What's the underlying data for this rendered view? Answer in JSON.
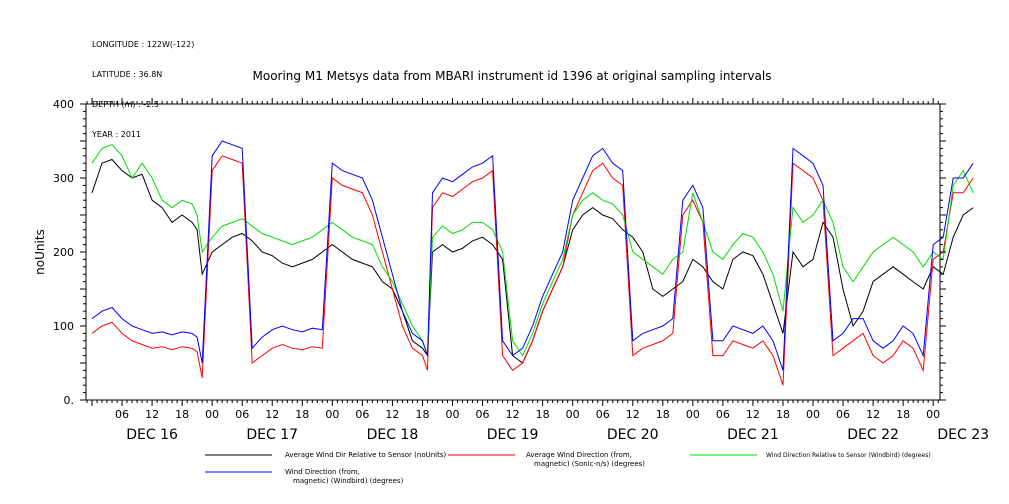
{
  "header": {
    "longitude": "LONGITUDE : 122W(-122)",
    "latitude": "LATITUDE : 36.8N",
    "depth": "DEPTH (m) : -2.5",
    "year": "YEAR : 2011"
  },
  "chart_data": {
    "type": "line",
    "title": "Mooring M1 Metsys data from MBARI instrument id 1396 at original sampling intervals",
    "ylabel": "noUnits",
    "xlabel": "",
    "ylim": [
      0,
      400
    ],
    "xlim": [
      0,
      180
    ],
    "yticks": [
      0,
      100,
      200,
      300,
      400
    ],
    "ytick_labels": [
      "0.",
      "100",
      "200",
      "300",
      "400"
    ],
    "x_units": "hours since DEC 16 00:00",
    "hour_ticks": [
      {
        "x": 6,
        "label": "06"
      },
      {
        "x": 12,
        "label": "12"
      },
      {
        "x": 18,
        "label": "18"
      },
      {
        "x": 24,
        "label": "00"
      },
      {
        "x": 30,
        "label": "06"
      },
      {
        "x": 36,
        "label": "12"
      },
      {
        "x": 42,
        "label": "18"
      },
      {
        "x": 48,
        "label": "00"
      },
      {
        "x": 54,
        "label": "06"
      },
      {
        "x": 60,
        "label": "12"
      },
      {
        "x": 66,
        "label": "18"
      },
      {
        "x": 72,
        "label": "00"
      },
      {
        "x": 78,
        "label": "06"
      },
      {
        "x": 84,
        "label": "12"
      },
      {
        "x": 90,
        "label": "18"
      },
      {
        "x": 96,
        "label": "00"
      },
      {
        "x": 102,
        "label": "06"
      },
      {
        "x": 108,
        "label": "12"
      },
      {
        "x": 114,
        "label": "18"
      },
      {
        "x": 120,
        "label": "00"
      },
      {
        "x": 126,
        "label": "06"
      },
      {
        "x": 132,
        "label": "12"
      },
      {
        "x": 138,
        "label": "18"
      },
      {
        "x": 144,
        "label": "00"
      },
      {
        "x": 150,
        "label": "06"
      },
      {
        "x": 156,
        "label": "12"
      },
      {
        "x": 162,
        "label": "18"
      },
      {
        "x": 168,
        "label": "00"
      }
    ],
    "day_labels": [
      {
        "x": 12,
        "label": "DEC 16"
      },
      {
        "x": 36,
        "label": "DEC 17"
      },
      {
        "x": 60,
        "label": "DEC 18"
      },
      {
        "x": 84,
        "label": "DEC 19"
      },
      {
        "x": 108,
        "label": "DEC 20"
      },
      {
        "x": 132,
        "label": "DEC 21"
      },
      {
        "x": 156,
        "label": "DEC 22"
      },
      {
        "x": 174,
        "label": "DEC 23"
      }
    ],
    "series": [
      {
        "name": "Average Wind Dir Relative to Sensor (noUnits)",
        "color": "#000000",
        "x": [
          0,
          2,
          4,
          6,
          8,
          10,
          12,
          14,
          16,
          18,
          20,
          21,
          22,
          24,
          26,
          28,
          30,
          32,
          34,
          36,
          38,
          40,
          42,
          44,
          46,
          48,
          50,
          52,
          54,
          56,
          58,
          60,
          62,
          64,
          66,
          67,
          68,
          70,
          72,
          74,
          76,
          78,
          80,
          82,
          84,
          86,
          88,
          90,
          92,
          94,
          96,
          98,
          100,
          102,
          104,
          106,
          108,
          110,
          112,
          114,
          116,
          118,
          120,
          122,
          124,
          126,
          128,
          130,
          132,
          134,
          136,
          138,
          140,
          142,
          144,
          146,
          148,
          150,
          152,
          154,
          156,
          158,
          160,
          162,
          164,
          166,
          168,
          170,
          172,
          174,
          176
        ],
        "values": [
          280,
          320,
          325,
          310,
          300,
          305,
          270,
          260,
          240,
          250,
          240,
          230,
          170,
          200,
          210,
          220,
          225,
          215,
          200,
          195,
          185,
          180,
          185,
          190,
          200,
          210,
          200,
          190,
          185,
          180,
          160,
          150,
          120,
          80,
          70,
          60,
          200,
          210,
          200,
          205,
          215,
          220,
          210,
          190,
          60,
          50,
          80,
          120,
          150,
          180,
          230,
          250,
          260,
          250,
          245,
          230,
          220,
          200,
          150,
          140,
          150,
          160,
          190,
          180,
          160,
          150,
          190,
          200,
          195,
          170,
          130,
          90,
          200,
          180,
          190,
          240,
          220,
          150,
          100,
          120,
          160,
          170,
          180,
          170,
          160,
          150,
          180,
          170,
          220,
          250,
          260
        ]
      },
      {
        "name": "Average Wind Direction (from, magnetic) (Sonic-n/s) (degrees)",
        "color": "#ff0000",
        "x": [
          0,
          2,
          4,
          6,
          8,
          10,
          12,
          14,
          16,
          18,
          20,
          21,
          22,
          24,
          26,
          28,
          30,
          32,
          34,
          36,
          38,
          40,
          42,
          44,
          46,
          48,
          50,
          52,
          54,
          56,
          58,
          60,
          62,
          64,
          66,
          67,
          68,
          70,
          72,
          74,
          76,
          78,
          80,
          82,
          84,
          86,
          88,
          90,
          92,
          94,
          96,
          98,
          100,
          102,
          104,
          106,
          108,
          110,
          112,
          114,
          116,
          118,
          120,
          122,
          124,
          126,
          128,
          130,
          132,
          134,
          136,
          138,
          140,
          142,
          144,
          146,
          148,
          150,
          152,
          154,
          156,
          158,
          160,
          162,
          164,
          166,
          168,
          170,
          172,
          174,
          176
        ],
        "values": [
          90,
          100,
          105,
          90,
          80,
          75,
          70,
          72,
          68,
          72,
          70,
          65,
          30,
          310,
          330,
          325,
          320,
          50,
          60,
          70,
          75,
          70,
          68,
          72,
          70,
          300,
          290,
          285,
          280,
          250,
          200,
          150,
          100,
          70,
          60,
          40,
          260,
          280,
          275,
          285,
          295,
          300,
          310,
          60,
          40,
          50,
          80,
          120,
          150,
          180,
          250,
          280,
          310,
          320,
          300,
          290,
          60,
          70,
          75,
          80,
          90,
          250,
          270,
          240,
          60,
          60,
          80,
          75,
          70,
          80,
          60,
          20,
          320,
          310,
          300,
          270,
          60,
          70,
          80,
          90,
          60,
          50,
          60,
          80,
          70,
          40,
          190,
          200,
          280,
          280,
          300
        ]
      },
      {
        "name": "Wind Direction Relative to Sensor (Windbird) (degrees)",
        "color": "#00dd00",
        "x": [
          0,
          2,
          4,
          6,
          8,
          10,
          12,
          14,
          16,
          18,
          20,
          21,
          22,
          24,
          26,
          28,
          30,
          32,
          34,
          36,
          38,
          40,
          42,
          44,
          46,
          48,
          50,
          52,
          54,
          56,
          58,
          60,
          62,
          64,
          66,
          67,
          68,
          70,
          72,
          74,
          76,
          78,
          80,
          82,
          84,
          86,
          88,
          90,
          92,
          94,
          96,
          98,
          100,
          102,
          104,
          106,
          108,
          110,
          112,
          114,
          116,
          118,
          120,
          122,
          124,
          126,
          128,
          130,
          132,
          134,
          136,
          138,
          140,
          142,
          144,
          146,
          148,
          150,
          152,
          154,
          156,
          158,
          160,
          162,
          164,
          166,
          168,
          170,
          172,
          174,
          176
        ],
        "values": [
          320,
          340,
          345,
          330,
          300,
          320,
          300,
          270,
          260,
          270,
          265,
          250,
          200,
          220,
          235,
          240,
          245,
          235,
          225,
          220,
          215,
          210,
          215,
          220,
          230,
          240,
          230,
          220,
          215,
          210,
          180,
          160,
          130,
          100,
          80,
          60,
          220,
          235,
          225,
          230,
          240,
          240,
          230,
          200,
          80,
          60,
          90,
          130,
          160,
          190,
          250,
          270,
          280,
          270,
          265,
          250,
          200,
          190,
          180,
          170,
          190,
          200,
          280,
          240,
          200,
          190,
          210,
          225,
          220,
          200,
          170,
          120,
          260,
          240,
          250,
          270,
          240,
          180,
          160,
          180,
          200,
          210,
          220,
          210,
          200,
          180,
          200,
          190,
          290,
          310,
          280
        ]
      },
      {
        "name": "Wind Direction (from, magnetic) (Windbird) (degrees)",
        "color": "#0000ff",
        "x": [
          0,
          2,
          4,
          6,
          8,
          10,
          12,
          14,
          16,
          18,
          20,
          21,
          22,
          24,
          26,
          28,
          30,
          32,
          34,
          36,
          38,
          40,
          42,
          44,
          46,
          48,
          50,
          52,
          54,
          56,
          58,
          60,
          62,
          64,
          66,
          67,
          68,
          70,
          72,
          74,
          76,
          78,
          80,
          82,
          84,
          86,
          88,
          90,
          92,
          94,
          96,
          98,
          100,
          102,
          104,
          106,
          108,
          110,
          112,
          114,
          116,
          118,
          120,
          122,
          124,
          126,
          128,
          130,
          132,
          134,
          136,
          138,
          140,
          142,
          144,
          146,
          148,
          150,
          152,
          154,
          156,
          158,
          160,
          162,
          164,
          166,
          168,
          170,
          172,
          174,
          176
        ],
        "values": [
          110,
          120,
          125,
          110,
          100,
          95,
          90,
          92,
          88,
          92,
          90,
          85,
          50,
          330,
          350,
          345,
          340,
          70,
          85,
          95,
          100,
          95,
          92,
          97,
          95,
          320,
          310,
          305,
          300,
          270,
          220,
          170,
          120,
          90,
          80,
          60,
          280,
          300,
          295,
          305,
          315,
          320,
          330,
          80,
          60,
          70,
          100,
          140,
          170,
          200,
          270,
          300,
          330,
          340,
          320,
          310,
          80,
          90,
          95,
          100,
          110,
          270,
          290,
          260,
          80,
          80,
          100,
          95,
          90,
          100,
          80,
          40,
          340,
          330,
          320,
          290,
          80,
          90,
          110,
          110,
          80,
          70,
          80,
          100,
          90,
          60,
          210,
          220,
          300,
          300,
          320
        ]
      }
    ],
    "legend_position": "bottom"
  }
}
